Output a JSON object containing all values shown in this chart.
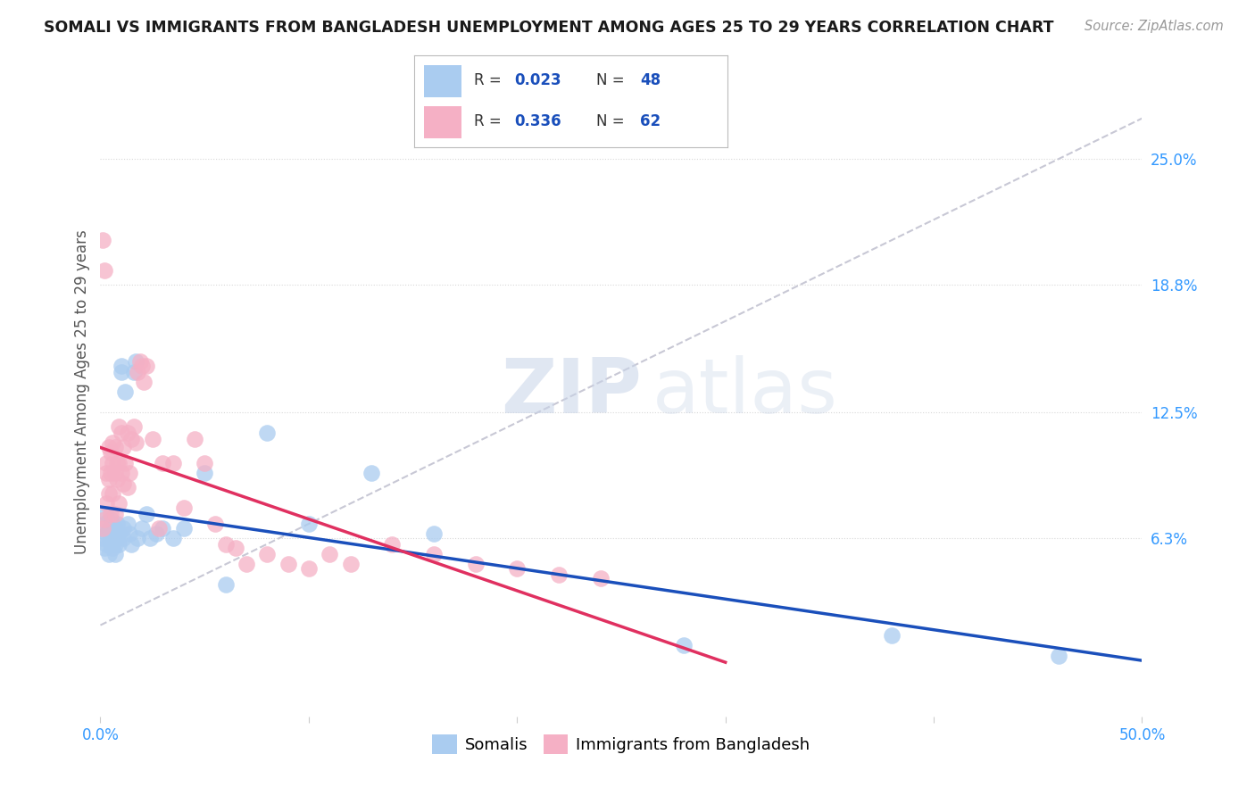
{
  "title": "SOMALI VS IMMIGRANTS FROM BANGLADESH UNEMPLOYMENT AMONG AGES 25 TO 29 YEARS CORRELATION CHART",
  "source": "Source: ZipAtlas.com",
  "ylabel": "Unemployment Among Ages 25 to 29 years",
  "xlim": [
    0.0,
    0.5
  ],
  "ylim": [
    -0.025,
    0.295
  ],
  "ytick_labels_right": [
    "25.0%",
    "18.8%",
    "12.5%",
    "6.3%"
  ],
  "ytick_values_right": [
    0.25,
    0.188,
    0.125,
    0.063
  ],
  "background_color": "#ffffff",
  "grid_color": "#d8d8d8",
  "somali_color": "#aaccf0",
  "bangladesh_color": "#f5b0c5",
  "somali_line_color": "#1a4fbb",
  "bangladesh_line_color": "#e03060",
  "trend_dashed_color": "#c8c8d5",
  "watermark_color": "#dde5f0",
  "legend_R_color": "#1a4fbb",
  "legend_N_color": "#1a4fbb",
  "somali_x": [
    0.001,
    0.002,
    0.002,
    0.003,
    0.003,
    0.003,
    0.004,
    0.004,
    0.005,
    0.005,
    0.005,
    0.006,
    0.006,
    0.006,
    0.007,
    0.007,
    0.007,
    0.008,
    0.008,
    0.009,
    0.009,
    0.01,
    0.01,
    0.011,
    0.011,
    0.012,
    0.013,
    0.014,
    0.015,
    0.016,
    0.017,
    0.018,
    0.02,
    0.022,
    0.024,
    0.027,
    0.03,
    0.035,
    0.04,
    0.05,
    0.06,
    0.08,
    0.1,
    0.13,
    0.16,
    0.28,
    0.38,
    0.46
  ],
  "somali_y": [
    0.063,
    0.058,
    0.07,
    0.065,
    0.06,
    0.075,
    0.055,
    0.068,
    0.063,
    0.06,
    0.072,
    0.065,
    0.058,
    0.07,
    0.06,
    0.068,
    0.055,
    0.063,
    0.07,
    0.06,
    0.065,
    0.148,
    0.145,
    0.068,
    0.063,
    0.135,
    0.07,
    0.065,
    0.06,
    0.145,
    0.15,
    0.063,
    0.068,
    0.075,
    0.063,
    0.065,
    0.068,
    0.063,
    0.068,
    0.095,
    0.04,
    0.115,
    0.07,
    0.095,
    0.065,
    0.01,
    0.015,
    0.005
  ],
  "bangladesh_x": [
    0.001,
    0.001,
    0.002,
    0.002,
    0.003,
    0.003,
    0.003,
    0.004,
    0.004,
    0.004,
    0.005,
    0.005,
    0.005,
    0.006,
    0.006,
    0.006,
    0.007,
    0.007,
    0.007,
    0.008,
    0.008,
    0.009,
    0.009,
    0.009,
    0.01,
    0.01,
    0.011,
    0.011,
    0.012,
    0.013,
    0.013,
    0.014,
    0.015,
    0.016,
    0.017,
    0.018,
    0.019,
    0.02,
    0.021,
    0.022,
    0.025,
    0.028,
    0.03,
    0.035,
    0.04,
    0.045,
    0.05,
    0.055,
    0.06,
    0.065,
    0.07,
    0.08,
    0.09,
    0.1,
    0.11,
    0.12,
    0.14,
    0.16,
    0.18,
    0.2,
    0.22,
    0.24
  ],
  "bangladesh_y": [
    0.21,
    0.068,
    0.195,
    0.072,
    0.1,
    0.095,
    0.08,
    0.108,
    0.092,
    0.085,
    0.105,
    0.095,
    0.075,
    0.11,
    0.1,
    0.085,
    0.108,
    0.095,
    0.075,
    0.1,
    0.092,
    0.118,
    0.1,
    0.08,
    0.115,
    0.095,
    0.108,
    0.09,
    0.1,
    0.115,
    0.088,
    0.095,
    0.112,
    0.118,
    0.11,
    0.145,
    0.15,
    0.148,
    0.14,
    0.148,
    0.112,
    0.068,
    0.1,
    0.1,
    0.078,
    0.112,
    0.1,
    0.07,
    0.06,
    0.058,
    0.05,
    0.055,
    0.05,
    0.048,
    0.055,
    0.05,
    0.06,
    0.055,
    0.05,
    0.048,
    0.045,
    0.043
  ]
}
